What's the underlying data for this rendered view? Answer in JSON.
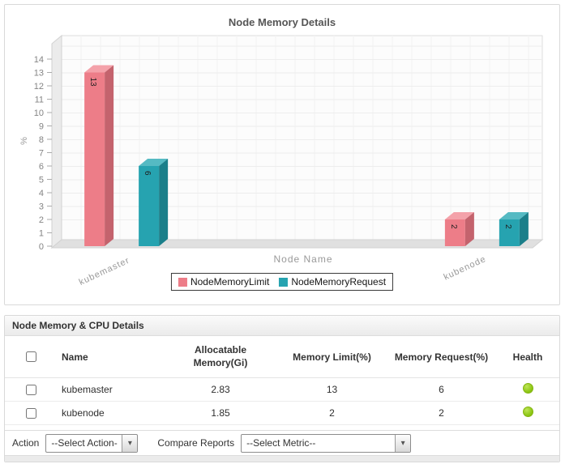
{
  "chart_data": {
    "type": "bar",
    "title": "Node Memory Details",
    "xlabel": "Node Name",
    "ylabel": "%",
    "categories": [
      "kubemaster",
      "kubenode"
    ],
    "series": [
      {
        "name": "NodeMemoryLimit",
        "values": [
          13,
          2
        ],
        "color_front": "#ed7d88",
        "color_side": "#c4636d",
        "color_top": "#f4a2aa"
      },
      {
        "name": "NodeMemoryRequest",
        "values": [
          6,
          2
        ],
        "color_front": "#26a3b0",
        "color_side": "#1b7f8a",
        "color_top": "#55bac3"
      }
    ],
    "ylim": [
      0,
      14
    ],
    "y_tick_step": 1,
    "grid": true,
    "legend_position": "bottom"
  },
  "table_panel": {
    "title": "Node Memory & CPU Details",
    "columns": [
      "Name",
      "Allocatable Memory(Gi)",
      "Memory Limit(%)",
      "Memory Request(%)",
      "Health"
    ],
    "rows": [
      {
        "name": "kubemaster",
        "allocatable_memory_gi": "2.83",
        "memory_limit_pct": "13",
        "memory_request_pct": "6",
        "health": "green"
      },
      {
        "name": "kubenode",
        "allocatable_memory_gi": "1.85",
        "memory_limit_pct": "2",
        "memory_request_pct": "2",
        "health": "green"
      }
    ],
    "health_color": "#8cc613"
  },
  "action_bar": {
    "action_label": "Action",
    "action_select_value": "--Select Action--",
    "compare_label": "Compare Reports",
    "compare_select_value": "--Select Metric--"
  }
}
